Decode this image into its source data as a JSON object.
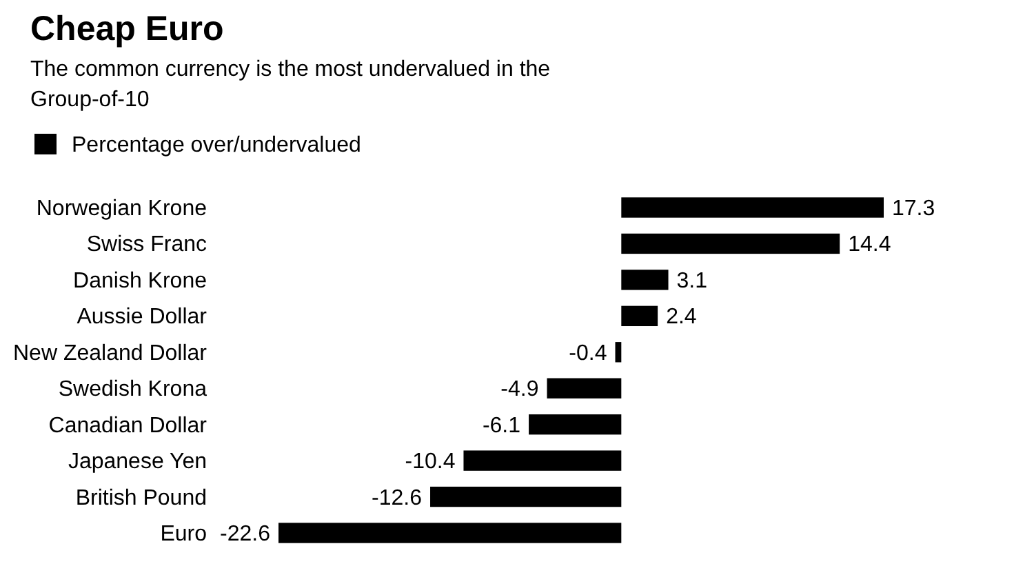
{
  "chart_data": {
    "type": "bar",
    "orientation": "horizontal",
    "title": "Cheap Euro",
    "subtitle": "The common currency is the most undervalued in the Group-of-10",
    "categories": [
      "Norwegian Krone",
      "Swiss Franc",
      "Danish Krone",
      "Aussie Dollar",
      "New Zealand Dollar",
      "Swedish Krona",
      "Canadian Dollar",
      "Japanese Yen",
      "British Pound",
      "Euro"
    ],
    "series": [
      {
        "name": "Percentage over/undervalued",
        "color": "#000000",
        "values": [
          17.3,
          14.4,
          3.1,
          2.4,
          -0.4,
          -4.9,
          -6.1,
          -10.4,
          -12.6,
          -22.6
        ]
      }
    ],
    "data_labels": true,
    "legend": "top left",
    "tick_labels": "y"
  }
}
